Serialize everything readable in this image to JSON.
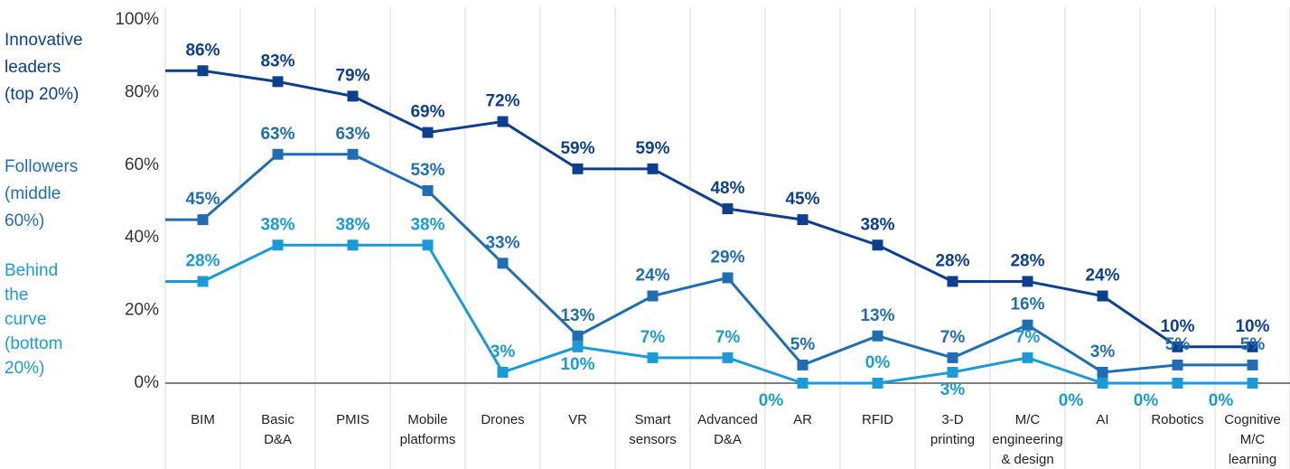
{
  "chart_data": {
    "type": "line",
    "categories": [
      [
        "BIM"
      ],
      [
        "Basic",
        "D&A"
      ],
      [
        "PMIS"
      ],
      [
        "Mobile",
        "platforms"
      ],
      [
        "Drones"
      ],
      [
        "VR"
      ],
      [
        "Smart",
        "sensors"
      ],
      [
        "Advanced",
        "D&A"
      ],
      [
        "AR"
      ],
      [
        "RFID"
      ],
      [
        "3-D",
        "printing"
      ],
      [
        "M/C",
        "engineering",
        "& design"
      ],
      [
        "AI"
      ],
      [
        "Robotics"
      ],
      [
        "Cognitive",
        "M/C",
        "learning"
      ]
    ],
    "series": [
      {
        "name": [
          "Innovative",
          "leaders",
          "(top 20%)"
        ],
        "color": "#0d3f8f",
        "values": [
          86,
          83,
          79,
          69,
          72,
          59,
          59,
          48,
          45,
          38,
          28,
          28,
          24,
          10,
          10
        ],
        "value_labels": [
          "86%",
          "83%",
          "79%",
          "69%",
          "72%",
          "59%",
          "59%",
          "48%",
          "45%",
          "38%",
          "28%",
          "28%",
          "24%",
          "10%",
          "10%"
        ]
      },
      {
        "name": [
          "Followers",
          "(middle",
          "60%)"
        ],
        "color": "#1f6db3",
        "values": [
          45,
          63,
          63,
          53,
          33,
          13,
          24,
          29,
          5,
          13,
          7,
          16,
          3,
          5,
          5
        ],
        "value_labels": [
          "45%",
          "63%",
          "63%",
          "53%",
          "33%",
          "13%",
          "24%",
          "29%",
          "5%",
          "13%",
          "7%",
          "16%",
          "3%",
          "5%",
          "5%"
        ]
      },
      {
        "name": [
          "Behind",
          "the",
          "curve",
          "(bottom",
          "20%)"
        ],
        "color": "#1b9ad8",
        "values": [
          28,
          38,
          38,
          38,
          3,
          10,
          7,
          7,
          0,
          0,
          3,
          7,
          0,
          0,
          0
        ],
        "value_labels": [
          "28%",
          "38%",
          "38%",
          "38%",
          "3%",
          "10%",
          "7%",
          "7%",
          "0%",
          "0%",
          "3%",
          "7%",
          "0%",
          "0%",
          "0%"
        ]
      }
    ],
    "ylim": [
      0,
      100
    ],
    "yticks": [
      {
        "value": 0,
        "label": "0%"
      },
      {
        "value": 20,
        "label": "20%"
      },
      {
        "value": 40,
        "label": "40%"
      },
      {
        "value": 60,
        "label": "60%"
      },
      {
        "value": 80,
        "label": "80%"
      },
      {
        "value": 100,
        "label": "100%"
      }
    ]
  }
}
